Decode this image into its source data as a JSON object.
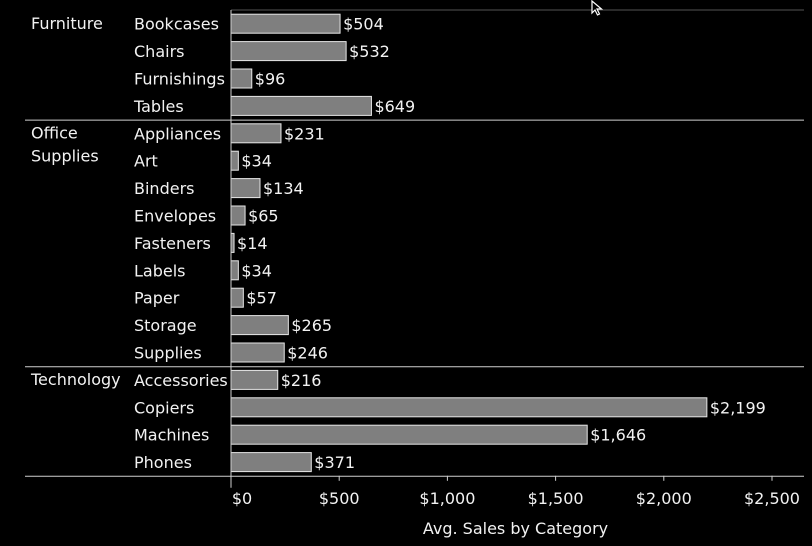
{
  "chart_data": {
    "type": "bar",
    "orientation": "horizontal",
    "xlabel": "Avg. Sales by Category",
    "xlim": [
      0,
      2500
    ],
    "x_ticks": [
      0,
      500,
      1000,
      1500,
      2000,
      2500
    ],
    "x_tick_labels": [
      "$0",
      "$500",
      "$1,000",
      "$1,500",
      "$2,000",
      "$2,500"
    ],
    "bar_color": "#7f7f7f",
    "bar_border_color": "#e6e6e6",
    "background_color": "#000000",
    "groups": [
      {
        "label": "Furniture",
        "items": [
          {
            "name": "Bookcases",
            "value": 504,
            "label": "$504"
          },
          {
            "name": "Chairs",
            "value": 532,
            "label": "$532"
          },
          {
            "name": "Furnishings",
            "value": 96,
            "label": "$96"
          },
          {
            "name": "Tables",
            "value": 649,
            "label": "$649"
          }
        ]
      },
      {
        "label": "Office Supplies",
        "items": [
          {
            "name": "Appliances",
            "value": 231,
            "label": "$231"
          },
          {
            "name": "Art",
            "value": 34,
            "label": "$34"
          },
          {
            "name": "Binders",
            "value": 134,
            "label": "$134"
          },
          {
            "name": "Envelopes",
            "value": 65,
            "label": "$65"
          },
          {
            "name": "Fasteners",
            "value": 14,
            "label": "$14"
          },
          {
            "name": "Labels",
            "value": 34,
            "label": "$34"
          },
          {
            "name": "Paper",
            "value": 57,
            "label": "$57"
          },
          {
            "name": "Storage",
            "value": 265,
            "label": "$265"
          },
          {
            "name": "Supplies",
            "value": 246,
            "label": "$246"
          }
        ]
      },
      {
        "label": "Technology",
        "items": [
          {
            "name": "Accessories",
            "value": 216,
            "label": "$216"
          },
          {
            "name": "Copiers",
            "value": 2199,
            "label": "$2,199"
          },
          {
            "name": "Machines",
            "value": 1646,
            "label": "$1,646"
          },
          {
            "name": "Phones",
            "value": 371,
            "label": "$371"
          }
        ]
      }
    ]
  },
  "icons": {
    "cursor": "mouse-pointer-icon"
  }
}
